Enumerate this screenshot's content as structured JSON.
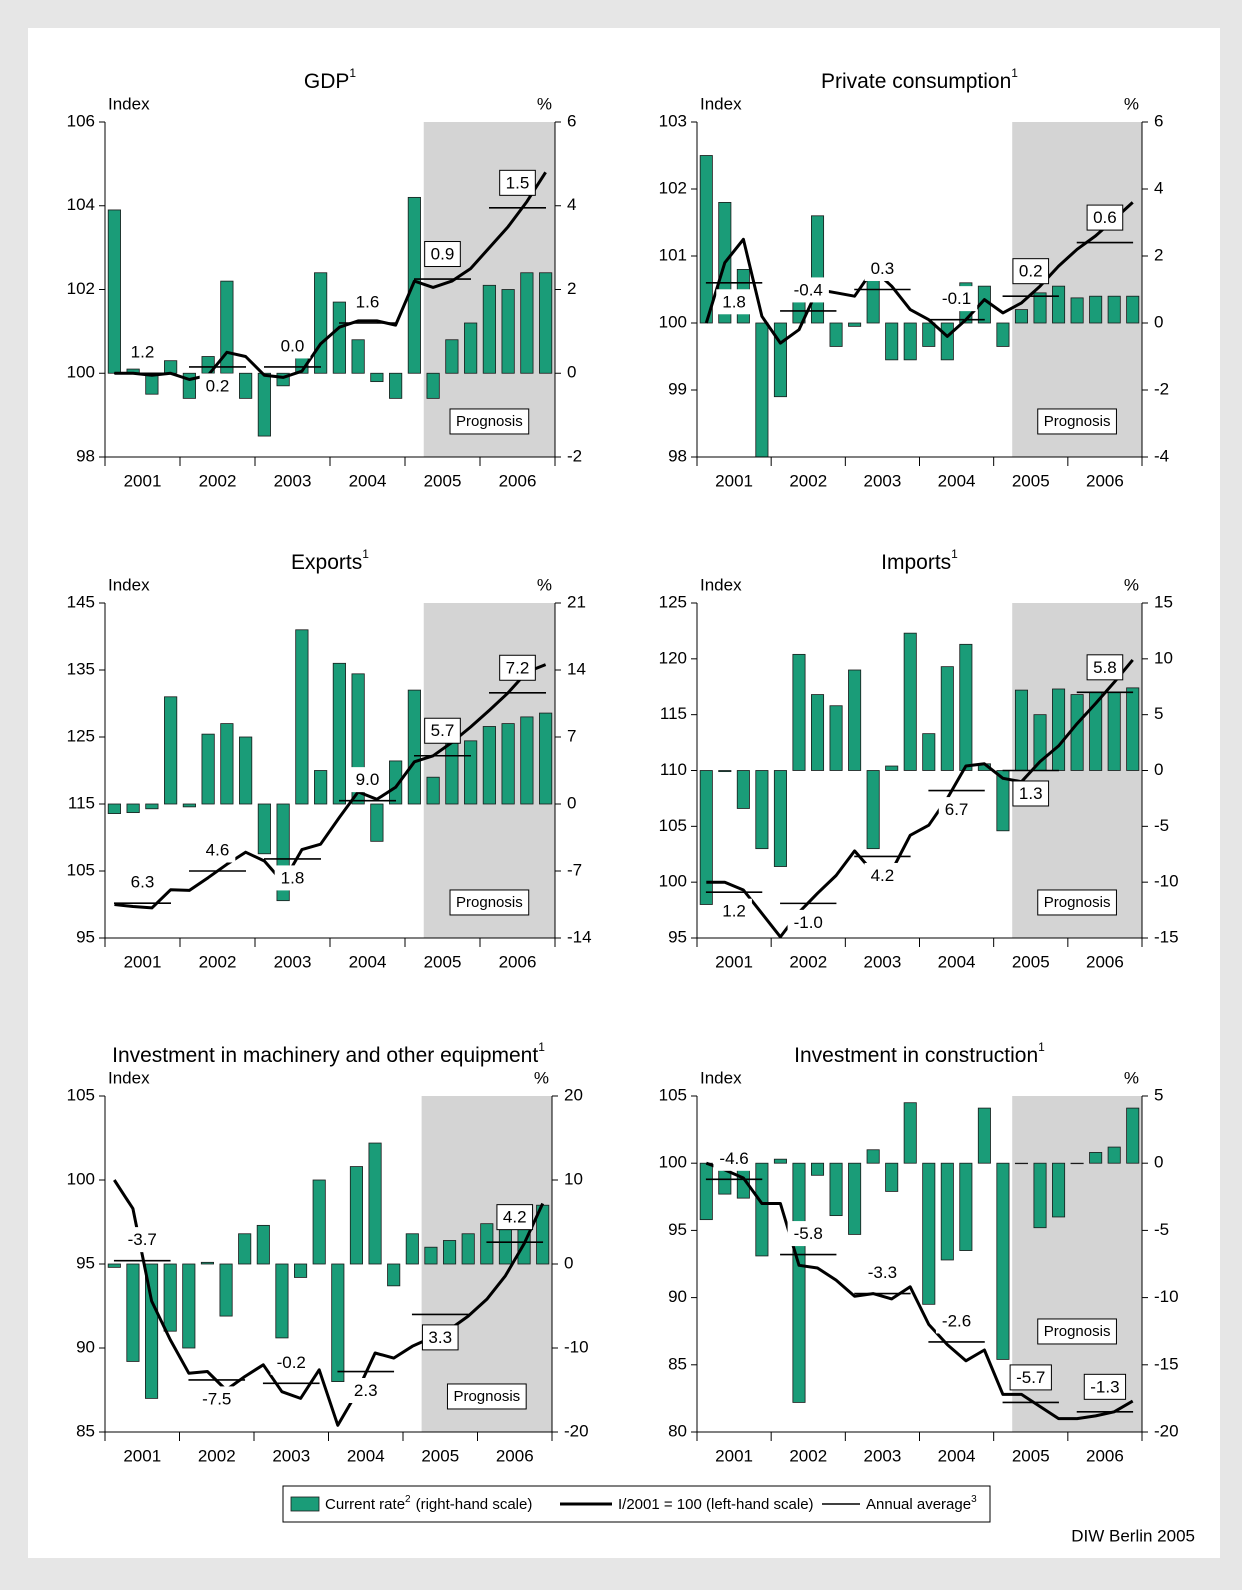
{
  "chart_data": [
    {
      "type": "bar",
      "title": "GDP",
      "title_sup": "1",
      "ylabel": "Index",
      "y2label": "%",
      "shade_label": "Prognosis",
      "categories": [
        "2001",
        "2002",
        "2003",
        "2004",
        "2005",
        "2006"
      ],
      "ylim": [
        98,
        106
      ],
      "yticks": [
        98,
        100,
        102,
        104,
        106
      ],
      "y2lim": [
        -2,
        6
      ],
      "y2ticks": [
        -2,
        0,
        2,
        4,
        6
      ],
      "bars": {
        "axis": "y2",
        "values": [
          3.9,
          0.1,
          -0.5,
          0.3,
          -0.6,
          0.4,
          2.2,
          -0.6,
          -1.5,
          -0.3,
          0.6,
          2.4,
          1.7,
          0.8,
          -0.2,
          -0.6,
          4.2,
          -0.6,
          0.8,
          1.2,
          2.1,
          2.0,
          2.4,
          2.4
        ]
      },
      "index": {
        "values": [
          100,
          100,
          99.95,
          100,
          99.85,
          99.95,
          100.5,
          100.4,
          99.95,
          99.9,
          100.05,
          100.7,
          101.1,
          101.25,
          101.25,
          101.15,
          102.2,
          102.05,
          102.2,
          102.5,
          103.0,
          103.5,
          104.1,
          104.8
        ]
      },
      "annual": {
        "values": [
          100.0,
          100.15,
          100.15,
          101.2,
          102.25,
          103.95
        ]
      },
      "annual_rates": {
        "values": [
          1.2,
          0.2,
          0.0,
          1.6,
          0.9,
          1.5
        ],
        "value_labels": [
          "1.2",
          "0.2",
          "0.0",
          "1.6",
          "0.9",
          "1.5"
        ]
      }
    },
    {
      "type": "bar",
      "title": "Private consumption",
      "title_sup": "1",
      "ylabel": "Index",
      "y2label": "%",
      "shade_label": "Prognosis",
      "categories": [
        "2001",
        "2002",
        "2003",
        "2004",
        "2005",
        "2006"
      ],
      "ylim": [
        98,
        103
      ],
      "yticks": [
        98,
        99,
        100,
        101,
        102,
        103
      ],
      "y2lim": [
        -4,
        6
      ],
      "y2ticks": [
        -4,
        -2,
        0,
        2,
        4,
        6
      ],
      "bars": {
        "axis": "y2",
        "values": [
          5.0,
          3.6,
          1.6,
          -4.0,
          -2.2,
          0.9,
          3.2,
          -0.7,
          -0.1,
          1.4,
          -1.1,
          -1.1,
          -0.7,
          -1.1,
          1.2,
          1.1,
          -0.7,
          0.4,
          0.9,
          1.1,
          0.75,
          0.8,
          0.8,
          0.8
        ]
      },
      "index": {
        "values": [
          100.0,
          100.9,
          101.25,
          100.1,
          99.7,
          99.9,
          100.5,
          100.45,
          100.4,
          100.8,
          100.55,
          100.2,
          100.05,
          99.8,
          100.05,
          100.35,
          100.15,
          100.3,
          100.55,
          100.85,
          101.1,
          101.3,
          101.55,
          101.8
        ]
      },
      "annual": {
        "values": [
          100.6,
          100.18,
          100.5,
          100.05,
          100.4,
          101.2
        ]
      },
      "annual_rates": {
        "values": [
          1.8,
          -0.4,
          0.3,
          -0.1,
          0.2,
          0.6
        ],
        "value_labels": [
          "1.8",
          "-0.4",
          "0.3",
          "-0.1",
          "0.2",
          "0.6"
        ]
      }
    },
    {
      "type": "bar",
      "title": "Exports",
      "title_sup": "1",
      "ylabel": "Index",
      "y2label": "%",
      "shade_label": "Prognosis",
      "categories": [
        "2001",
        "2002",
        "2003",
        "2004",
        "2005",
        "2006"
      ],
      "ylim": [
        95,
        145
      ],
      "yticks": [
        95,
        105,
        115,
        125,
        135,
        145
      ],
      "y2lim": [
        -14,
        21
      ],
      "y2ticks": [
        -14,
        -7,
        0,
        7,
        14,
        21
      ],
      "bars": {
        "axis": "y2",
        "values": [
          -1.0,
          -0.9,
          -0.5,
          11.2,
          -0.3,
          7.3,
          8.4,
          7.0,
          -5.2,
          -10.1,
          18.2,
          3.5,
          14.7,
          13.6,
          -3.9,
          4.5,
          11.9,
          2.8,
          7.0,
          6.6,
          8.1,
          8.4,
          9.1,
          9.5
        ]
      },
      "index": {
        "values": [
          100,
          99.7,
          99.5,
          102.2,
          102.1,
          104,
          106,
          107.8,
          106.5,
          103.3,
          108.2,
          109,
          113,
          116.8,
          115.7,
          117.5,
          121.3,
          122.2,
          124.2,
          126.5,
          129,
          131.6,
          134.7,
          135.8
        ]
      },
      "annual": {
        "values": [
          100.2,
          105.0,
          106.8,
          115.5,
          122.2,
          131.6
        ]
      },
      "annual_rates": {
        "values": [
          6.3,
          4.6,
          1.8,
          9.0,
          5.7,
          7.2
        ],
        "value_labels": [
          "6.3",
          "4.6",
          "1.8",
          "9.0",
          "5.7",
          "7.2"
        ]
      }
    },
    {
      "type": "bar",
      "title": "Imports",
      "title_sup": "1",
      "ylabel": "Index",
      "y2label": "%",
      "shade_label": "Prognosis",
      "categories": [
        "2001",
        "2002",
        "2003",
        "2004",
        "2005",
        "2006"
      ],
      "ylim": [
        95,
        125
      ],
      "yticks": [
        95,
        100,
        105,
        110,
        115,
        120,
        125
      ],
      "y2lim": [
        -15,
        15
      ],
      "y2ticks": [
        -15,
        -10,
        -5,
        0,
        5,
        10,
        15
      ],
      "bars": {
        "axis": "y2",
        "values": [
          -12.0,
          -0.1,
          -3.4,
          -7.0,
          -8.6,
          10.4,
          6.8,
          5.8,
          9.0,
          -7.0,
          0.4,
          12.3,
          3.3,
          9.3,
          11.3,
          0.6,
          -5.4,
          7.2,
          5.0,
          7.3,
          6.8,
          7.0,
          7.0,
          7.4
        ]
      },
      "index": {
        "values": [
          100,
          100,
          99.3,
          97.2,
          95.1,
          97.3,
          99,
          100.6,
          102.8,
          100.9,
          101.0,
          104.2,
          105.1,
          107.5,
          110.4,
          110.6,
          109.3,
          109.0,
          110.8,
          112.2,
          114.2,
          116.0,
          117.9,
          119.9
        ]
      },
      "annual": {
        "values": [
          99.1,
          98.1,
          102.3,
          108.2,
          110.0,
          117.0
        ]
      },
      "annual_rates": {
        "values": [
          1.2,
          -1.0,
          4.2,
          6.7,
          1.3,
          5.8
        ],
        "value_labels": [
          "1.2",
          "-1.0",
          "4.2",
          "6.7",
          "1.3",
          "5.8"
        ]
      }
    },
    {
      "type": "bar",
      "title": "Investment in machinery and other equipment",
      "title_sup": "1",
      "ylabel": "Index",
      "y2label": "%",
      "shade_label": "Prognosis",
      "categories": [
        "2001",
        "2002",
        "2003",
        "2004",
        "2005",
        "2006"
      ],
      "ylim": [
        85,
        105
      ],
      "yticks": [
        85,
        90,
        95,
        100,
        105
      ],
      "y2lim": [
        -20,
        20
      ],
      "y2ticks": [
        -20,
        -10,
        0,
        10,
        20
      ],
      "bars": {
        "axis": "y2",
        "values": [
          -0.4,
          -11.6,
          -16.0,
          -8.0,
          -10.0,
          0.2,
          -6.2,
          3.6,
          4.6,
          -8.8,
          -1.6,
          10.0,
          -14.0,
          11.6,
          14.4,
          -2.6,
          3.6,
          2.0,
          2.8,
          3.6,
          4.8,
          6.0,
          6.0,
          7.0
        ]
      },
      "index": {
        "values": [
          100,
          98.3,
          92.8,
          90.5,
          88.5,
          88.6,
          87.5,
          88.3,
          89.0,
          87.4,
          87.0,
          88.7,
          85.4,
          87.3,
          89.7,
          89.4,
          90.1,
          90.6,
          91.1,
          91.9,
          92.9,
          94.3,
          96.2,
          98.6
        ]
      },
      "annual": {
        "values": [
          95.2,
          88.1,
          87.9,
          88.6,
          92.0,
          96.3
        ]
      },
      "annual_rates": {
        "values": [
          -3.7,
          -7.5,
          -0.2,
          2.3,
          3.3,
          4.2
        ],
        "value_labels": [
          "-3.7",
          "-7.5",
          "-0.2",
          "2.3",
          "3.3",
          "4.2"
        ]
      }
    },
    {
      "type": "bar",
      "title": "Investment in construction",
      "title_sup": "1",
      "ylabel": "Index",
      "y2label": "%",
      "shade_label": "Prognosis",
      "categories": [
        "2001",
        "2002",
        "2003",
        "2004",
        "2005",
        "2006"
      ],
      "ylim": [
        80,
        105
      ],
      "yticks": [
        80,
        85,
        90,
        95,
        100,
        105
      ],
      "y2lim": [
        -20,
        5
      ],
      "y2ticks": [
        -20,
        -15,
        -10,
        -5,
        0,
        5
      ],
      "bars": {
        "axis": "y2",
        "values": [
          -4.2,
          -2.3,
          -2.6,
          -6.9,
          0.3,
          -17.8,
          -0.9,
          -3.9,
          -5.3,
          1.0,
          -2.1,
          4.5,
          -10.5,
          -7.2,
          -6.5,
          4.1,
          -14.6,
          0,
          -4.8,
          -4.0,
          0,
          0.8,
          1.2,
          4.1
        ]
      },
      "index": {
        "values": [
          100,
          99.5,
          98.9,
          97,
          97,
          92.4,
          92.2,
          91.3,
          90.1,
          90.3,
          89.9,
          90.8,
          88.0,
          86.5,
          85.3,
          86.1,
          82.8,
          82.8,
          81.9,
          81.0,
          81.0,
          81.2,
          81.5,
          82.3
        ]
      },
      "annual": {
        "values": [
          98.8,
          93.2,
          90.3,
          86.7,
          82.2,
          81.5
        ]
      },
      "annual_rates": {
        "values": [
          -4.6,
          -5.8,
          -3.3,
          -2.6,
          -5.7,
          -1.3
        ],
        "value_labels": [
          "-4.6",
          "-5.8",
          "-3.3",
          "-2.6",
          "-5.7",
          "-1.3"
        ]
      }
    }
  ],
  "legend": {
    "items": [
      {
        "name": "Current rate",
        "sup": "2",
        "note": "(right-hand scale)",
        "color": "#1a9c78"
      },
      {
        "name": "I/2001 = 100 (left-hand scale)",
        "color": "#000000"
      },
      {
        "name": "Annual average",
        "sup": "3",
        "color": "#000000"
      }
    ]
  },
  "shade_color": "#d4d4d4",
  "source": "DIW Berlin 2005"
}
